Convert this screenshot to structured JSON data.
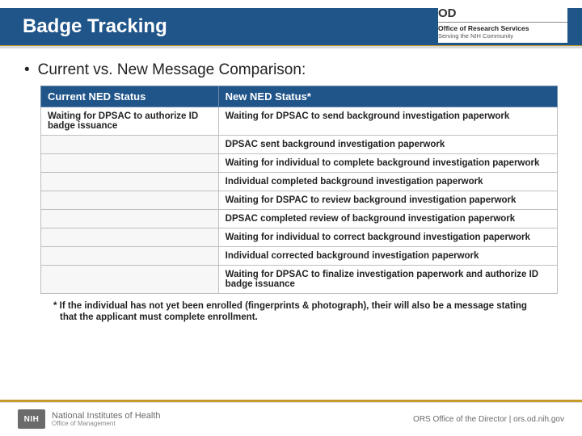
{
  "header": {
    "title": "Badge Tracking",
    "od_label": "OD",
    "od_line1": "Office of Research Services",
    "od_line2": "Serving the NIH Community"
  },
  "content": {
    "bullet": "Current vs. New Message Comparison:",
    "table": {
      "columns": [
        "Current NED Status",
        "New NED Status*"
      ],
      "rows": [
        [
          "Waiting for DPSAC to authorize ID badge issuance",
          "Waiting for DPSAC to send background investigation paperwork"
        ],
        [
          "",
          "DPSAC sent background investigation paperwork"
        ],
        [
          "",
          "Waiting for individual to complete background investigation paperwork"
        ],
        [
          "",
          "Individual completed background investigation paperwork"
        ],
        [
          "",
          "Waiting for DSPAC to review background investigation paperwork"
        ],
        [
          "",
          "DPSAC completed review of background investigation paperwork"
        ],
        [
          "",
          "Waiting for individual to correct background investigation paperwork"
        ],
        [
          "",
          "Individual corrected background investigation paperwork"
        ],
        [
          "",
          "Waiting for DPSAC to finalize investigation paperwork and authorize ID badge issuance"
        ]
      ]
    },
    "footnote": "* If the individual has not yet been enrolled (fingerprints & photograph), their will also be a message stating that the applicant must complete enrollment."
  },
  "footer": {
    "nih_abbrev": "NIH",
    "nih_line1": "National Institutes of Health",
    "nih_line2": "Office of Management",
    "right": "ORS Office of the Director | ors.od.nih.gov"
  },
  "colors": {
    "brand_blue": "#20558a",
    "accent_gold": "#c79a2a",
    "text": "#222222",
    "grid": "#bfbfbf"
  }
}
